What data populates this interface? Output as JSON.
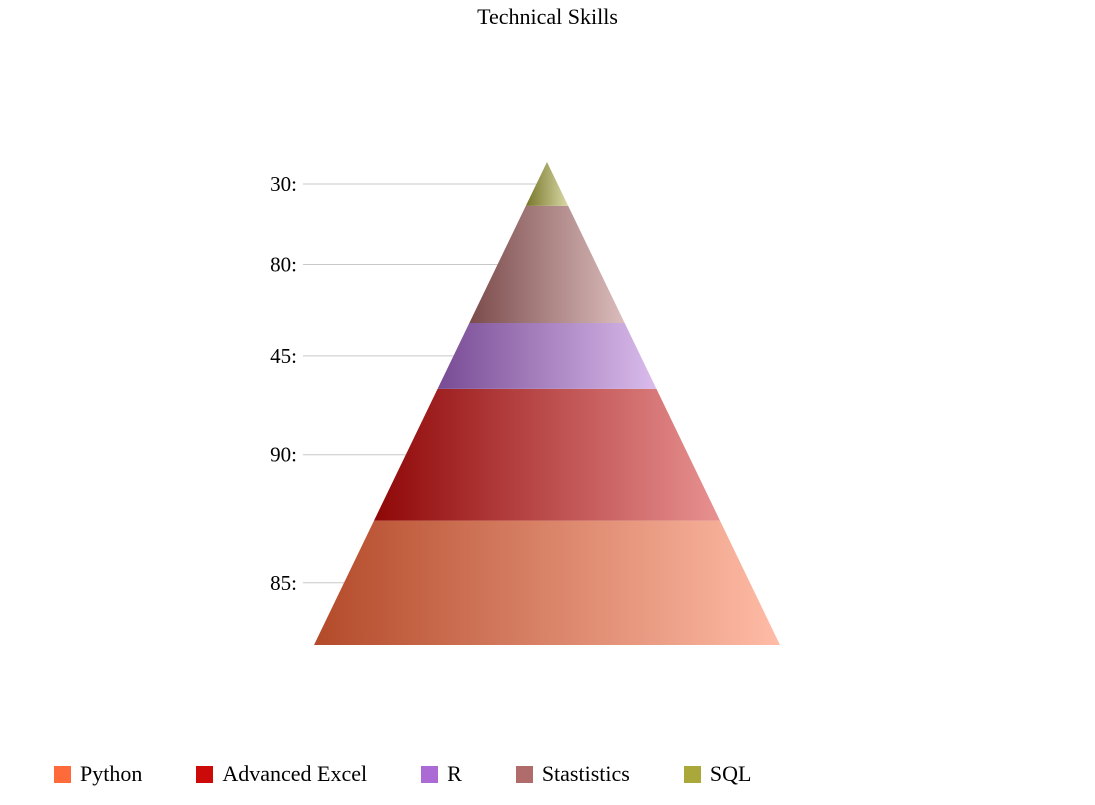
{
  "chart_data": {
    "type": "pyramid",
    "title": "Technical Skills",
    "series": [
      {
        "name": "Python",
        "value": 85,
        "label": "85:",
        "color": "#ff6a3b"
      },
      {
        "name": "Advanced Excel",
        "value": 90,
        "label": "90:",
        "color": "#cc0a0a"
      },
      {
        "name": "R",
        "value": 45,
        "label": "45:",
        "color": "#ac6bd4"
      },
      {
        "name": "Stastistics",
        "value": 80,
        "label": "80:",
        "color": "#b06b6b"
      },
      {
        "name": "SQL",
        "value": 30,
        "label": "30:",
        "color": "#aaa83a"
      }
    ],
    "legend_position": "bottom-left"
  }
}
